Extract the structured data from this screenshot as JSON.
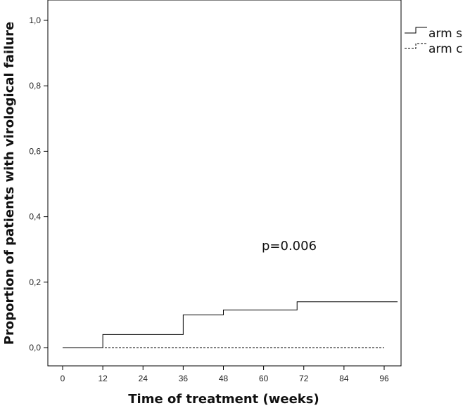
{
  "chart_data": {
    "type": "line",
    "step": true,
    "xlabel": "Time of treatment (weeks)",
    "ylabel": "Proportion of patients with virological failure",
    "xlim": [
      0,
      100
    ],
    "ylim": [
      0,
      1.0
    ],
    "x_ticks": [
      "0",
      "12",
      "24",
      "36",
      "48",
      "60",
      "72",
      "84",
      "96"
    ],
    "y_ticks": [
      "0,0",
      "0,2",
      "0,4",
      "0,6",
      "0,8",
      "1,0"
    ],
    "grid": false,
    "legend_position": "right",
    "annotations": [
      "p=0.006"
    ],
    "series": [
      {
        "name": "arm s",
        "style": "solid",
        "color": "#000000",
        "points": [
          [
            0,
            0.0
          ],
          [
            12,
            0.04
          ],
          [
            36,
            0.1
          ],
          [
            48,
            0.115
          ],
          [
            70,
            0.14
          ],
          [
            100,
            0.14
          ]
        ]
      },
      {
        "name": "arm c",
        "style": "dashed",
        "color": "#000000",
        "points": [
          [
            0,
            0.0
          ],
          [
            96,
            0.0
          ]
        ]
      }
    ]
  }
}
